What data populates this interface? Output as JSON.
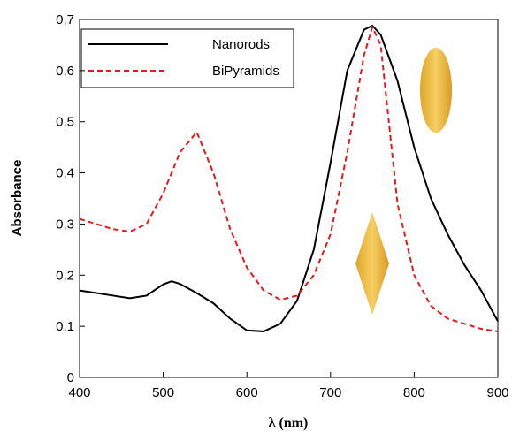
{
  "chart_data": {
    "type": "line",
    "xlabel": "λ (nm)",
    "ylabel": "Absorbance",
    "x": [
      400,
      420,
      440,
      460,
      480,
      500,
      510,
      520,
      540,
      560,
      580,
      600,
      620,
      640,
      660,
      680,
      700,
      720,
      740,
      750,
      760,
      780,
      800,
      820,
      840,
      860,
      880,
      900
    ],
    "series": [
      {
        "name": "Nanorods",
        "color": "#000000",
        "dash": "solid",
        "values": [
          0.17,
          0.165,
          0.16,
          0.155,
          0.16,
          0.182,
          0.188,
          0.183,
          0.165,
          0.145,
          0.115,
          0.092,
          0.09,
          0.105,
          0.15,
          0.25,
          0.42,
          0.6,
          0.68,
          0.688,
          0.67,
          0.58,
          0.45,
          0.35,
          0.28,
          0.22,
          0.17,
          0.11
        ]
      },
      {
        "name": "BiPyramids",
        "color": "#e31a1c",
        "dash": "dashed",
        "values": [
          0.31,
          0.3,
          0.29,
          0.285,
          0.3,
          0.36,
          0.4,
          0.44,
          0.48,
          0.4,
          0.29,
          0.215,
          0.17,
          0.152,
          0.16,
          0.2,
          0.28,
          0.44,
          0.63,
          0.685,
          0.65,
          0.34,
          0.2,
          0.14,
          0.115,
          0.105,
          0.095,
          0.09
        ]
      }
    ],
    "xlim": [
      400,
      900
    ],
    "xticks": [
      400,
      500,
      600,
      700,
      800,
      900
    ],
    "ylim": [
      0,
      0.7
    ],
    "yticks": [
      0,
      {
        "value": 0.1,
        "label": "0,1"
      },
      {
        "value": 0.2,
        "label": "0,2"
      },
      {
        "value": 0.3,
        "label": "0,3"
      },
      {
        "value": 0.4,
        "label": "0,4"
      },
      {
        "value": 0.5,
        "label": "0,5"
      },
      {
        "value": 0.6,
        "label": "0,6"
      },
      {
        "value": 0.7,
        "label": "0,7"
      }
    ],
    "legend": "upper-left"
  }
}
